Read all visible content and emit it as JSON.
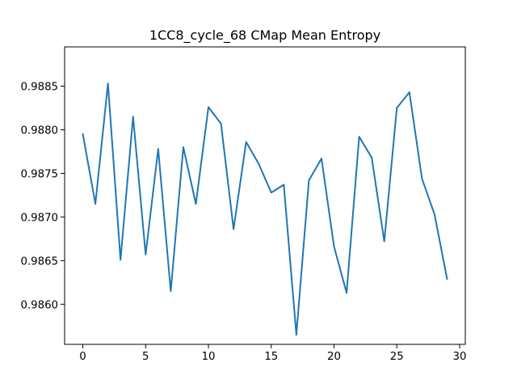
{
  "chart_data": {
    "type": "line",
    "title": "1CC8_cycle_68 CMap Mean Entropy",
    "xlabel": "",
    "ylabel": "",
    "xlim": [
      -1.45,
      30.45
    ],
    "ylim": [
      0.98554,
      0.98895
    ],
    "grid": false,
    "xticks": [
      0,
      5,
      10,
      15,
      20,
      25,
      30
    ],
    "yticks": [
      0.986,
      0.9865,
      0.987,
      0.9875,
      0.988,
      0.9885
    ],
    "xtick_labels": [
      "0",
      "5",
      "10",
      "15",
      "20",
      "25",
      "30"
    ],
    "ytick_labels": [
      "0.9860",
      "0.9865",
      "0.9870",
      "0.9875",
      "0.9880",
      "0.9885"
    ],
    "series": [
      {
        "color": "#1f77b4",
        "x": [
          0,
          1,
          2,
          3,
          4,
          5,
          6,
          7,
          8,
          9,
          10,
          11,
          12,
          13,
          14,
          15,
          16,
          17,
          18,
          19,
          20,
          21,
          22,
          23,
          24,
          25,
          26,
          27,
          28,
          29
        ],
        "values": [
          0.98795,
          0.98715,
          0.98853,
          0.98651,
          0.98815,
          0.98657,
          0.98778,
          0.98615,
          0.9878,
          0.98715,
          0.98826,
          0.98807,
          0.98686,
          0.98786,
          0.98761,
          0.98728,
          0.98737,
          0.98565,
          0.98742,
          0.98767,
          0.98666,
          0.98613,
          0.98792,
          0.98768,
          0.98672,
          0.98825,
          0.98843,
          0.98744,
          0.98703,
          0.98629
        ]
      }
    ]
  }
}
